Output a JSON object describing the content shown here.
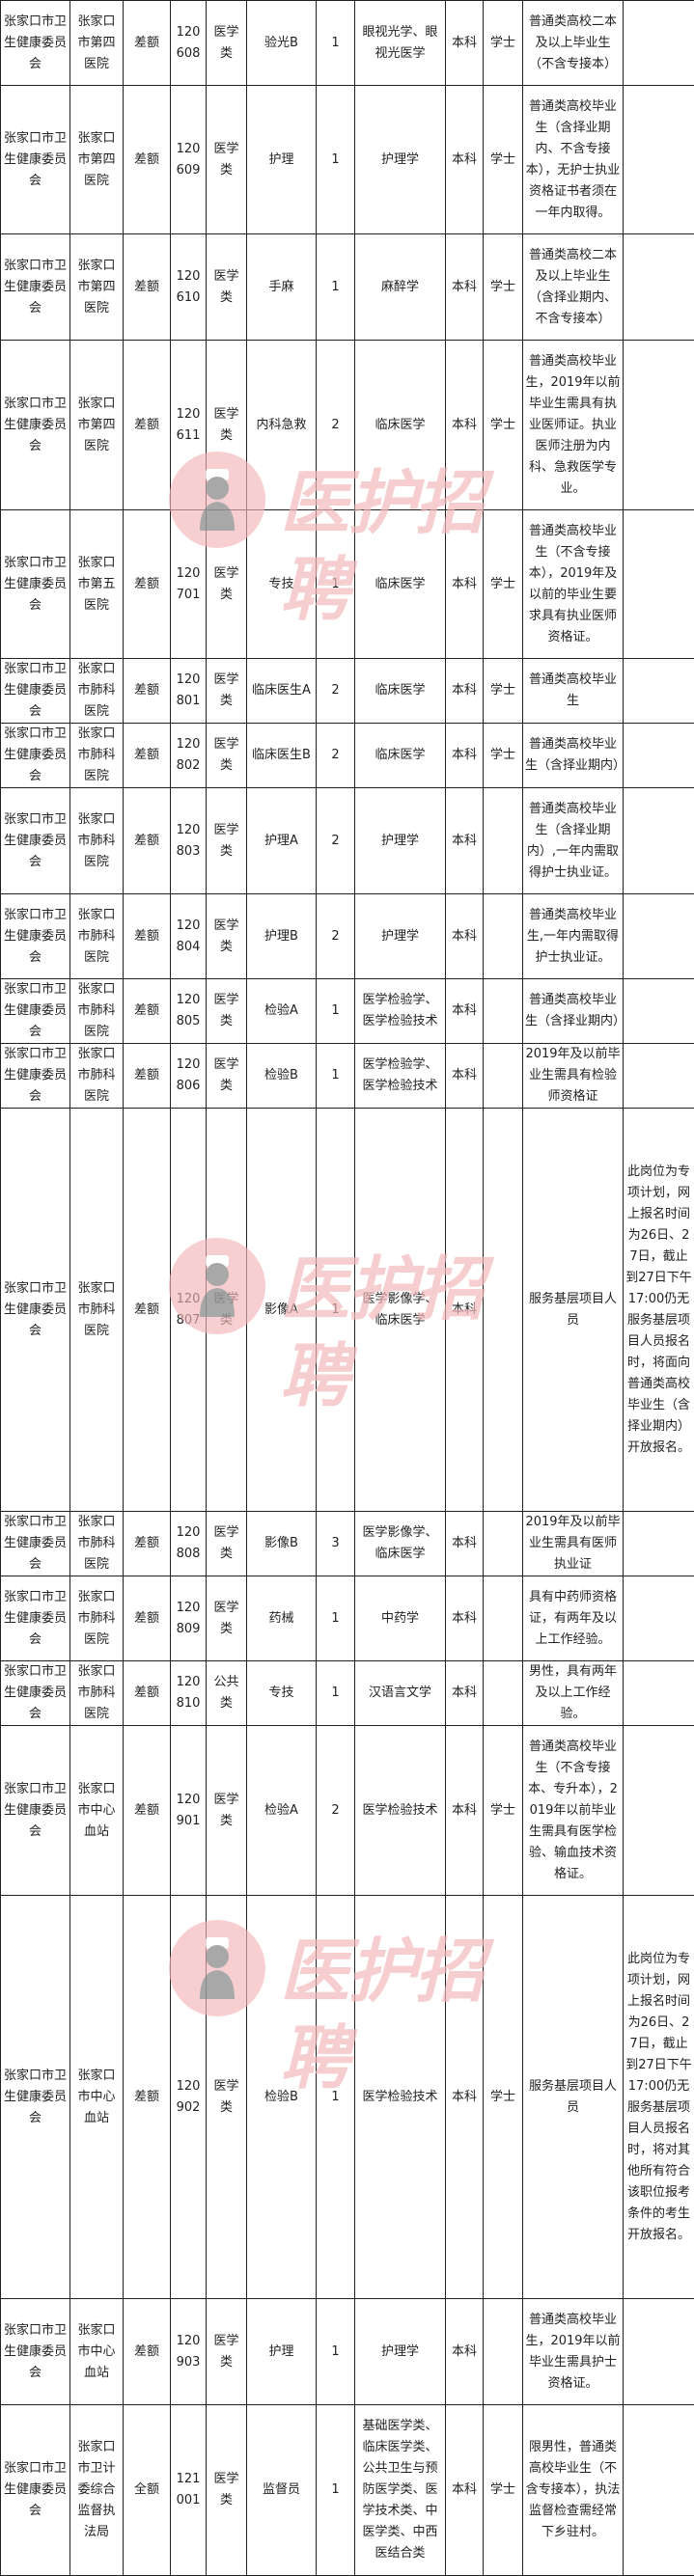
{
  "watermark": {
    "text": "医护招聘",
    "color": "#f2b8ba",
    "icon": "nurse-avatar-icon"
  },
  "rows": [
    [
      "张家口市卫生健康委员会",
      "张家口市第四医院",
      "差额",
      "120608",
      "医学类",
      "验光B",
      "1",
      "眼视光学、眼视光医学",
      "本科",
      "学士",
      "普通类高校二本及以上毕业生（不含专接本）",
      ""
    ],
    [
      "张家口市卫生健康委员会",
      "张家口市第四医院",
      "差额",
      "120609",
      "医学类",
      "护理",
      "1",
      "护理学",
      "本科",
      "学士",
      "普通类高校毕业生（含择业期内、不含专接本），无护士执业资格证书者须在一年内取得。",
      ""
    ],
    [
      "张家口市卫生健康委员会",
      "张家口市第四医院",
      "差额",
      "120610",
      "医学类",
      "手麻",
      "1",
      "麻醉学",
      "本科",
      "学士",
      "普通类高校二本及以上毕业生（含择业期内、不含专接本）",
      ""
    ],
    [
      "张家口市卫生健康委员会",
      "张家口市第四医院",
      "差额",
      "120611",
      "医学类",
      "内科急救",
      "2",
      "临床医学",
      "本科",
      "学士",
      "普通类高校毕业生，2019年以前毕业生需具有执业医师证。执业医师注册为内科、急救医学专业。",
      ""
    ],
    [
      "张家口市卫生健康委员会",
      "张家口市第五医院",
      "差额",
      "120701",
      "医学类",
      "专技",
      "1",
      "临床医学",
      "本科",
      "学士",
      "普通类高校毕业生（不含专接本），2019年及以前的毕业生要求具有执业医师资格证。",
      ""
    ],
    [
      "张家口市卫生健康委员会",
      "张家口市肺科医院",
      "差额",
      "120801",
      "医学类",
      "临床医生A",
      "2",
      "临床医学",
      "本科",
      "学士",
      "普通类高校毕业生",
      ""
    ],
    [
      "张家口市卫生健康委员会",
      "张家口市肺科医院",
      "差额",
      "120802",
      "医学类",
      "临床医生B",
      "2",
      "临床医学",
      "本科",
      "学士",
      "普通类高校毕业生（含择业期内）",
      ""
    ],
    [
      "张家口市卫生健康委员会",
      "张家口市肺科医院",
      "差额",
      "120803",
      "医学类",
      "护理A",
      "2",
      "护理学",
      "本科",
      "",
      "普通类高校毕业生（含择业期内）,一年内需取得护士执业证。",
      ""
    ],
    [
      "张家口市卫生健康委员会",
      "张家口市肺科医院",
      "差额",
      "120804",
      "医学类",
      "护理B",
      "2",
      "护理学",
      "本科",
      "",
      "普通类高校毕业生,一年内需取得护士执业证。",
      ""
    ],
    [
      "张家口市卫生健康委员会",
      "张家口市肺科医院",
      "差额",
      "120805",
      "医学类",
      "检验A",
      "1",
      "医学检验学、医学检验技术",
      "本科",
      "",
      "普通类高校毕业生（含择业期内）",
      ""
    ],
    [
      "张家口市卫生健康委员会",
      "张家口市肺科医院",
      "差额",
      "120806",
      "医学类",
      "检验B",
      "1",
      "医学检验学、医学检验技术",
      "本科",
      "",
      "2019年及以前毕业生需具有检验师资格证",
      ""
    ],
    [
      "张家口市卫生健康委员会",
      "张家口市肺科医院",
      "差额",
      "120807",
      "医学类",
      "影像A",
      "1",
      "医学影像学、临床医学",
      "本科",
      "",
      "服务基层项目人员",
      "此岗位为专项计划，网上报名时间为26日、27日，截止到27日下午17:00仍无服务基层项目人员报名时，将面向普通类高校毕业生（含择业期内）开放报名。"
    ],
    [
      "张家口市卫生健康委员会",
      "张家口市肺科医院",
      "差额",
      "120808",
      "医学类",
      "影像B",
      "3",
      "医学影像学、临床医学",
      "本科",
      "",
      "2019年及以前毕业生需具有医师执业证",
      ""
    ],
    [
      "张家口市卫生健康委员会",
      "张家口市肺科医院",
      "差额",
      "120809",
      "医学类",
      "药械",
      "1",
      "中药学",
      "本科",
      "",
      "具有中药师资格证，有两年及以上工作经验。",
      ""
    ],
    [
      "张家口市卫生健康委员会",
      "张家口市肺科医院",
      "差额",
      "120810",
      "公共类",
      "专技",
      "1",
      "汉语言文学",
      "本科",
      "",
      "男性，具有两年及以上工作经验。",
      ""
    ],
    [
      "张家口市卫生健康委员会",
      "张家口市中心血站",
      "差额",
      "120901",
      "医学类",
      "检验A",
      "2",
      "医学检验技术",
      "本科",
      "学士",
      "普通类高校毕业生（不含专接本、专升本），2019年以前毕业生需具有医学检验、输血技术资格证。",
      ""
    ],
    [
      "张家口市卫生健康委员会",
      "张家口市中心血站",
      "差额",
      "120902",
      "医学类",
      "检验B",
      "1",
      "医学检验技术",
      "本科",
      "学士",
      "服务基层项目人员",
      "此岗位为专项计划，网上报名时间为26日、27日，截止到27日下午17:00仍无服务基层项目人员报名时，将对其他所有符合该职位报考条件的考生开放报名。"
    ],
    [
      "张家口市卫生健康委员会",
      "张家口市中心血站",
      "差额",
      "120903",
      "医学类",
      "护理",
      "1",
      "护理学",
      "本科",
      "",
      "普通类高校毕业生，2019年以前毕业生需具护士资格证。",
      ""
    ],
    [
      "张家口市卫生健康委员会",
      "张家口市卫计委综合监督执法局",
      "全额",
      "121001",
      "医学类",
      "监督员",
      "1",
      "基础医学类、临床医学类、公共卫生与预防医学类、医学技术类、中医学类、中西医结合类",
      "本科",
      "学士",
      "限男性，普通类高校毕业生（不含专接本），执法监督检查需经常下乡驻村。",
      ""
    ]
  ]
}
